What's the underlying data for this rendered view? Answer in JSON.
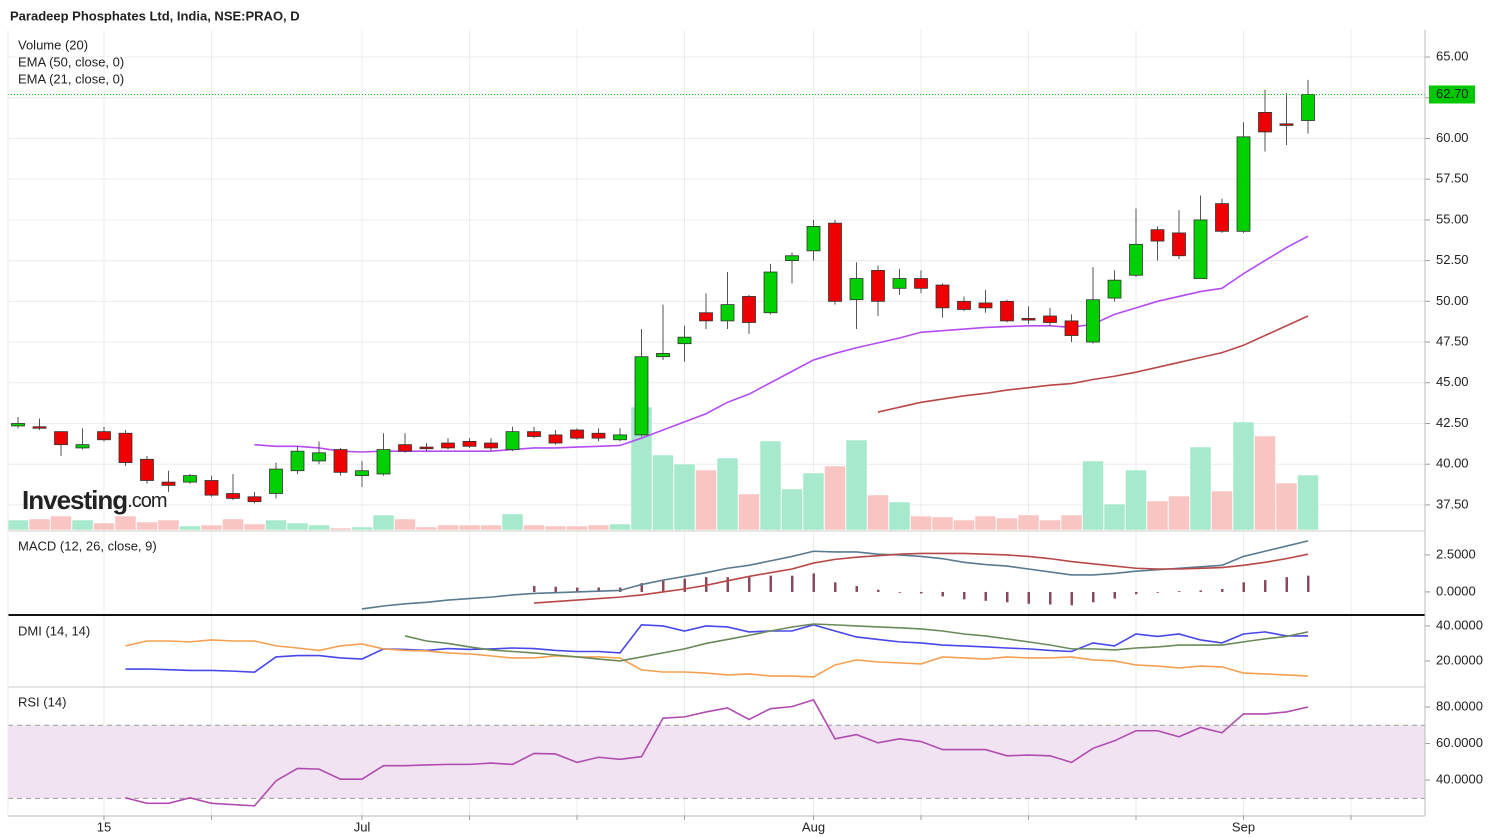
{
  "chart_data": [
    {
      "type": "candlestick",
      "title": "Paradeep Phosphates Ltd, India, NSE:PRAO, D",
      "categories": [
        null,
        null,
        null,
        null,
        "15",
        null,
        null,
        null,
        null,
        null,
        null,
        null,
        null,
        null,
        null,
        null,
        "Jul",
        null,
        null,
        null,
        null,
        null,
        null,
        null,
        null,
        null,
        null,
        null,
        null,
        null,
        null,
        null,
        null,
        null,
        null,
        null,
        null,
        "Aug",
        null,
        null,
        null,
        null,
        null,
        null,
        null,
        null,
        null,
        null,
        null,
        null,
        null,
        null,
        null,
        null,
        null,
        null,
        null,
        "Sep",
        null,
        null,
        null
      ],
      "open": [
        42.35,
        42.3,
        42.0,
        41.0,
        42.0,
        41.9,
        40.3,
        38.9,
        38.9,
        39.0,
        38.2,
        38.0,
        38.2,
        39.6,
        40.2,
        40.9,
        39.3,
        39.4,
        41.2,
        41.05,
        41.3,
        41.4,
        41.3,
        40.9,
        42.0,
        41.8,
        42.1,
        41.9,
        41.5,
        41.8,
        46.6,
        47.4,
        49.3,
        48.8,
        50.3,
        49.3,
        52.5,
        53.1,
        54.8,
        50.1,
        51.9,
        50.8,
        51.4,
        51.0,
        50.0,
        49.9,
        50.0,
        48.95,
        49.1,
        48.8,
        47.5,
        50.2,
        51.6,
        54.4,
        54.2,
        51.4,
        56.0,
        54.3,
        61.6,
        60.9,
        61.1
      ],
      "high": [
        42.9,
        42.8,
        42.0,
        42.2,
        42.3,
        42.1,
        40.5,
        39.6,
        39.4,
        39.3,
        39.4,
        38.3,
        40.1,
        41.1,
        41.4,
        41.0,
        40.2,
        41.9,
        41.9,
        41.3,
        41.6,
        41.6,
        41.6,
        42.3,
        42.3,
        42.1,
        42.2,
        42.2,
        42.2,
        48.3,
        49.8,
        48.5,
        50.5,
        51.8,
        50.4,
        52.3,
        53.0,
        55.0,
        55.0,
        52.4,
        52.2,
        52.0,
        51.9,
        51.1,
        50.3,
        50.7,
        50.1,
        49.7,
        49.6,
        49.2,
        52.1,
        51.9,
        55.7,
        54.6,
        55.6,
        56.5,
        56.3,
        61.0,
        63.0,
        62.8,
        63.6
      ],
      "low": [
        42.2,
        42.1,
        40.5,
        40.9,
        41.4,
        39.9,
        38.8,
        38.3,
        38.8,
        38.0,
        37.8,
        37.6,
        37.9,
        39.4,
        40.0,
        39.3,
        38.6,
        39.3,
        40.7,
        40.8,
        40.9,
        41.0,
        40.8,
        40.8,
        41.6,
        41.2,
        41.5,
        41.4,
        41.4,
        41.7,
        46.4,
        46.3,
        48.3,
        48.3,
        48.0,
        49.2,
        51.1,
        52.5,
        49.8,
        48.3,
        49.1,
        50.4,
        50.5,
        49.0,
        49.4,
        49.3,
        48.7,
        48.6,
        48.5,
        47.5,
        47.4,
        50.0,
        51.5,
        52.5,
        52.6,
        51.4,
        54.2,
        54.2,
        59.2,
        59.6,
        60.3
      ],
      "close": [
        42.5,
        42.25,
        41.2,
        41.2,
        41.5,
        40.1,
        39.0,
        38.7,
        39.3,
        38.1,
        37.9,
        37.7,
        39.7,
        40.8,
        40.7,
        39.5,
        39.6,
        40.9,
        40.8,
        40.95,
        41.0,
        41.1,
        41.0,
        42.0,
        41.7,
        41.3,
        41.6,
        41.6,
        41.8,
        46.6,
        46.8,
        47.8,
        48.8,
        49.8,
        48.7,
        51.8,
        52.8,
        54.6,
        50.0,
        51.4,
        50.0,
        51.4,
        50.8,
        49.6,
        49.5,
        49.6,
        48.8,
        48.85,
        48.7,
        47.9,
        50.1,
        51.3,
        53.5,
        53.7,
        52.8,
        55.0,
        54.3,
        60.1,
        60.4,
        60.8,
        62.7
      ],
      "up_color": "#00d000",
      "down_color": "#ee0000",
      "ylim": [
        35.96,
        66.66
      ],
      "yticks": [
        {
          "value": 37.5,
          "label": "37.50"
        },
        {
          "value": 40,
          "label": "40.00"
        },
        {
          "value": 42.5,
          "label": "42.50"
        },
        {
          "value": 45,
          "label": "45.00"
        },
        {
          "value": 47.5,
          "label": "47.50"
        },
        {
          "value": 50,
          "label": "50.00"
        },
        {
          "value": 52.5,
          "label": "52.50"
        },
        {
          "value": 55,
          "label": "55.00"
        },
        {
          "value": 57.5,
          "label": "57.50"
        },
        {
          "value": 60,
          "label": "60.00"
        },
        {
          "value": 62.5,
          "label": "62.50"
        },
        {
          "value": 65,
          "label": "65.00"
        }
      ],
      "grid": true,
      "volume": {
        "name": "Volume (20)",
        "up_color": "#a6e9cc",
        "down_color": "#f9c5c2",
        "values": [
          10,
          11,
          14,
          10,
          7,
          14,
          8,
          10,
          4,
          5,
          11,
          6,
          10,
          7,
          5,
          2,
          3,
          15,
          11,
          3,
          5,
          5,
          5,
          16,
          5,
          4,
          4,
          5,
          6,
          123,
          75,
          66,
          60,
          72,
          36,
          89,
          41,
          57,
          64,
          90,
          35,
          28,
          14,
          13,
          10,
          14,
          12,
          15,
          10,
          15,
          69,
          26,
          60,
          29,
          34,
          83,
          39,
          108,
          94,
          47,
          55
        ]
      },
      "series": [
        {
          "name": "EMA (50, close, 0)",
          "color": "#b84848",
          "values": [
            null,
            null,
            null,
            null,
            null,
            null,
            null,
            null,
            null,
            null,
            null,
            null,
            null,
            null,
            null,
            null,
            null,
            null,
            null,
            null,
            null,
            null,
            null,
            null,
            null,
            null,
            null,
            null,
            null,
            null,
            null,
            null,
            null,
            null,
            null,
            null,
            null,
            null,
            null,
            null,
            43.2,
            43.5,
            43.8,
            44.0,
            44.2,
            44.35,
            44.55,
            44.7,
            44.85,
            44.95,
            45.2,
            45.4,
            45.65,
            45.95,
            46.25,
            46.55,
            46.85,
            47.3,
            47.9,
            48.5,
            49.1
          ]
        },
        {
          "name": "EMA (21, close, 0)",
          "color": "#b44cf2",
          "values": [
            null,
            null,
            null,
            null,
            null,
            null,
            null,
            null,
            null,
            null,
            null,
            41.2,
            41.1,
            41.1,
            41.0,
            40.8,
            40.75,
            40.8,
            40.8,
            40.8,
            40.8,
            40.8,
            40.8,
            40.9,
            41.0,
            41.0,
            41.05,
            41.1,
            41.15,
            41.6,
            42.1,
            42.6,
            43.1,
            43.8,
            44.3,
            45.0,
            45.7,
            46.4,
            46.8,
            47.15,
            47.45,
            47.75,
            48.1,
            48.2,
            48.3,
            48.4,
            48.45,
            48.5,
            48.5,
            48.4,
            48.6,
            49.2,
            49.6,
            50.0,
            50.3,
            50.6,
            50.8,
            51.7,
            52.5,
            53.3,
            54.0
          ]
        }
      ],
      "last_price": {
        "value": 62.7,
        "label": "62.70",
        "color": "#00c800"
      },
      "watermark": {
        "main": "Investing",
        "suffix": ".com"
      }
    },
    {
      "type": "macd",
      "title": "MACD (12, 26, close, 9)",
      "ylim": [
        -1.49,
        4.05
      ],
      "yticks": [
        {
          "value": 0,
          "label": "0.0000"
        },
        {
          "value": 2.5,
          "label": "2.5000"
        }
      ],
      "series": [
        {
          "color": "#5a7a90",
          "values": [
            null,
            null,
            null,
            null,
            null,
            null,
            null,
            null,
            null,
            null,
            null,
            null,
            null,
            null,
            null,
            null,
            -1.15,
            -0.95,
            -0.8,
            -0.7,
            -0.55,
            -0.45,
            -0.35,
            -0.2,
            -0.1,
            -0.05,
            0,
            0.05,
            0.1,
            0.5,
            0.8,
            1.05,
            1.3,
            1.6,
            1.8,
            2.1,
            2.4,
            2.75,
            2.7,
            2.7,
            2.55,
            2.5,
            2.4,
            2.25,
            2.0,
            1.85,
            1.75,
            1.55,
            1.35,
            1.15,
            1.15,
            1.25,
            1.4,
            1.5,
            1.6,
            1.7,
            1.8,
            2.4,
            2.75,
            3.1,
            3.45
          ]
        },
        {
          "color": "#b84848",
          "values": [
            null,
            null,
            null,
            null,
            null,
            null,
            null,
            null,
            null,
            null,
            null,
            null,
            null,
            null,
            null,
            null,
            null,
            null,
            null,
            null,
            null,
            null,
            null,
            null,
            -0.75,
            -0.65,
            -0.55,
            -0.45,
            -0.35,
            -0.2,
            0.0,
            0.2,
            0.45,
            0.75,
            1.05,
            1.3,
            1.55,
            1.95,
            2.2,
            2.35,
            2.45,
            2.55,
            2.6,
            2.6,
            2.6,
            2.55,
            2.5,
            2.4,
            2.25,
            2.05,
            1.9,
            1.75,
            1.6,
            1.55,
            1.55,
            1.6,
            1.65,
            1.8,
            2.0,
            2.25,
            2.55
          ]
        }
      ],
      "histogram": {
        "color": "#8a4a5c",
        "values": [
          null,
          null,
          null,
          null,
          null,
          null,
          null,
          null,
          null,
          null,
          null,
          null,
          null,
          null,
          null,
          null,
          null,
          null,
          null,
          null,
          null,
          null,
          null,
          null,
          0.4,
          0.35,
          0.3,
          0.3,
          0.3,
          0.6,
          0.8,
          0.9,
          1.0,
          1.0,
          1.0,
          1.1,
          1.1,
          1.25,
          0.65,
          0.4,
          0.15,
          0,
          -0.1,
          -0.3,
          -0.5,
          -0.6,
          -0.7,
          -0.8,
          -0.85,
          -0.9,
          -0.7,
          -0.45,
          -0.15,
          0,
          0.05,
          0.1,
          0.2,
          0.65,
          0.8,
          1.0,
          1.1
        ]
      }
    },
    {
      "type": "line",
      "title": "DMI (14, 14)",
      "ylim": [
        5.7,
        45.1
      ],
      "yticks": [
        {
          "value": 20,
          "label": "20.0000"
        },
        {
          "value": 40,
          "label": "40.0000"
        }
      ],
      "series": [
        {
          "color": "#4848e8",
          "values": [
            null,
            null,
            null,
            null,
            null,
            15.4,
            15.4,
            15,
            14.6,
            14.6,
            14.2,
            13.6,
            22.3,
            23.1,
            23.1,
            21.7,
            21.1,
            26.9,
            26.6,
            26,
            27.1,
            26.6,
            26.9,
            27.4,
            27.1,
            26,
            25.4,
            25.4,
            24.6,
            40.6,
            40,
            37.1,
            40,
            39.4,
            36.6,
            37.1,
            37.1,
            40.6,
            37.1,
            33.7,
            32.3,
            30.9,
            30.3,
            29.1,
            28.6,
            28,
            27.4,
            26.9,
            26,
            25.4,
            30.3,
            28.6,
            35.4,
            34,
            35.4,
            32,
            30.3,
            35.4,
            36.6,
            34.3,
            34.3
          ]
        },
        {
          "color": "#f5a050",
          "values": [
            null,
            null,
            null,
            null,
            null,
            28.6,
            31.4,
            31.4,
            30.9,
            32,
            31.4,
            31.4,
            28.6,
            27.4,
            26,
            28.6,
            29.7,
            26.9,
            26,
            25.7,
            24.6,
            24,
            22.9,
            21.7,
            21.7,
            22.9,
            22.3,
            22.3,
            21.7,
            14.9,
            13.7,
            13.7,
            13.1,
            12,
            12.6,
            11.4,
            11.4,
            10.9,
            17.7,
            20.6,
            19.4,
            18.9,
            18.3,
            22.3,
            21.7,
            21.1,
            22.3,
            21.7,
            21.7,
            22.3,
            20.6,
            20,
            17.7,
            17.1,
            16,
            17.1,
            16.6,
            13.1,
            12.6,
            12,
            11.4
          ]
        },
        {
          "color": "#6a8a5a",
          "values": [
            null,
            null,
            null,
            null,
            null,
            null,
            null,
            null,
            null,
            null,
            null,
            null,
            null,
            null,
            null,
            null,
            null,
            null,
            34.3,
            31.4,
            30,
            28,
            26.3,
            25.4,
            24.6,
            23.4,
            22.3,
            21.1,
            20,
            22.3,
            24.6,
            26.9,
            30,
            32.3,
            34.6,
            37.1,
            39.4,
            41.1,
            40.6,
            40,
            39.4,
            38.9,
            38.3,
            37.1,
            35.4,
            34.3,
            32.6,
            30.9,
            29.1,
            26.9,
            26.9,
            26.3,
            27.4,
            28,
            29.1,
            29.1,
            29.1,
            30.9,
            32.6,
            34,
            36.6
          ]
        }
      ]
    },
    {
      "type": "line",
      "title": "RSI (14)",
      "ylim": [
        20.9,
        90.4
      ],
      "yticks": [
        {
          "value": 40,
          "label": "40.0000"
        },
        {
          "value": 60,
          "label": "60.0000"
        },
        {
          "value": 80,
          "label": "80.0000"
        }
      ],
      "bands": [
        30,
        70
      ],
      "band_color": "#f1e3f1",
      "series": [
        {
          "color": "#b04cb0",
          "values": [
            null,
            null,
            null,
            null,
            null,
            30.3,
            27.3,
            27.3,
            30.3,
            27.3,
            26.6,
            25.9,
            39.6,
            46.4,
            46,
            40.5,
            40.5,
            47.9,
            47.9,
            48.3,
            48.6,
            48.6,
            49.3,
            48.6,
            54.6,
            54.3,
            49.7,
            52.5,
            51.4,
            52.8,
            73.9,
            74.6,
            77.3,
            79.5,
            73.2,
            79.1,
            80.2,
            83.9,
            62.6,
            64.9,
            60.4,
            62.6,
            61.1,
            56.7,
            56.7,
            56.7,
            53.3,
            53.7,
            53.3,
            49.7,
            57.4,
            61.5,
            67,
            67,
            63.7,
            68.8,
            65.9,
            76.2,
            76.2,
            77.3,
            80
          ]
        }
      ]
    }
  ]
}
